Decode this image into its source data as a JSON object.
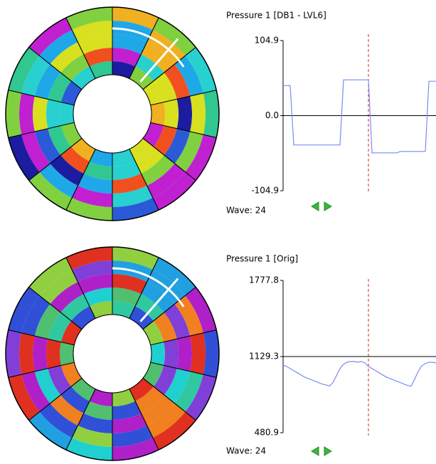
{
  "chart_data": [
    {
      "type": "line",
      "title": "Pressure 1 [DB1 - LVL6]",
      "footer": "Wave: 24",
      "ylim": [
        -104.9,
        104.9
      ],
      "yticks": [
        {
          "value": -104.9,
          "label": "-104.9"
        },
        {
          "value": 0,
          "label": "0.0"
        },
        {
          "value": 104.9,
          "label": "104.9"
        }
      ],
      "series": [
        {
          "color": "#7a8cf0",
          "values": [
            42,
            42,
            42,
            -41,
            -41,
            -41,
            -41,
            -41,
            -41,
            -41,
            -41,
            -41,
            -41,
            -41,
            -41,
            -41,
            -41,
            50,
            50,
            50,
            50,
            50,
            50,
            50,
            50,
            -52,
            -52,
            -52,
            -52,
            -52,
            -52,
            -52,
            -52,
            -50,
            -50,
            -50,
            -50,
            -50,
            -50,
            -50,
            -50,
            48,
            48,
            48
          ]
        }
      ]
    },
    {
      "type": "line",
      "title": "Pressure 1 [Orig]",
      "footer": "Wave: 24",
      "ylim": [
        480.9,
        1777.8
      ],
      "yticks": [
        480.9,
        1129.3,
        1777.8
      ],
      "series": [
        {
          "color": "#7a8cf0",
          "values": [
            1057,
            1045,
            1027,
            1009,
            991,
            973,
            955,
            943,
            931,
            919,
            907,
            895,
            889,
            877,
            907,
            967,
            1027,
            1063,
            1081,
            1087,
            1087,
            1081,
            1087,
            1075,
            1045,
            1027,
            1009,
            991,
            973,
            955,
            943,
            931,
            919,
            907,
            895,
            883,
            877,
            937,
            1003,
            1051,
            1069,
            1081,
            1081,
            1075
          ]
        }
      ]
    }
  ]
}
